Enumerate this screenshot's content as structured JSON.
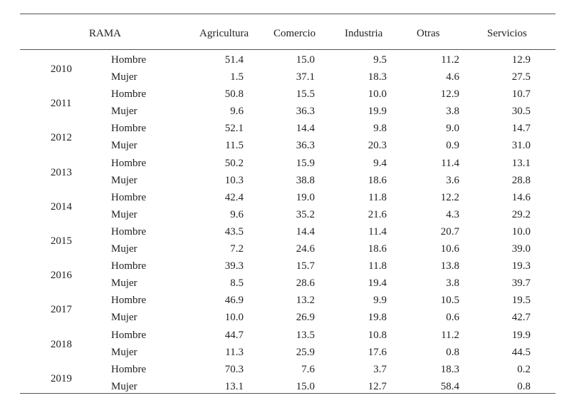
{
  "table": {
    "header": {
      "rama": "RAMA",
      "columns": [
        "Agricultura",
        "Comercio",
        "Industria",
        "Otras",
        "Servicios"
      ]
    },
    "groups": [
      {
        "year": "2010",
        "rows": [
          {
            "sex": "Hombre",
            "values": [
              "51.4",
              "15.0",
              "9.5",
              "11.2",
              "12.9"
            ]
          },
          {
            "sex": "Mujer",
            "values": [
              "1.5",
              "37.1",
              "18.3",
              "4.6",
              "27.5"
            ]
          }
        ]
      },
      {
        "year": "2011",
        "rows": [
          {
            "sex": "Hombre",
            "values": [
              "50.8",
              "15.5",
              "10.0",
              "12.9",
              "10.7"
            ]
          },
          {
            "sex": "Mujer",
            "values": [
              "9.6",
              "36.3",
              "19.9",
              "3.8",
              "30.5"
            ]
          }
        ]
      },
      {
        "year": "2012",
        "rows": [
          {
            "sex": "Hombre",
            "values": [
              "52.1",
              "14.4",
              "9.8",
              "9.0",
              "14.7"
            ]
          },
          {
            "sex": "Mujer",
            "values": [
              "11.5",
              "36.3",
              "20.3",
              "0.9",
              "31.0"
            ]
          }
        ]
      },
      {
        "year": "2013",
        "rows": [
          {
            "sex": "Hombre",
            "values": [
              "50.2",
              "15.9",
              "9.4",
              "11.4",
              "13.1"
            ]
          },
          {
            "sex": "Mujer",
            "values": [
              "10.3",
              "38.8",
              "18.6",
              "3.6",
              "28.8"
            ]
          }
        ]
      },
      {
        "year": "2014",
        "rows": [
          {
            "sex": "Hombre",
            "values": [
              "42.4",
              "19.0",
              "11.8",
              "12.2",
              "14.6"
            ]
          },
          {
            "sex": "Mujer",
            "values": [
              "9.6",
              "35.2",
              "21.6",
              "4.3",
              "29.2"
            ]
          }
        ]
      },
      {
        "year": "2015",
        "rows": [
          {
            "sex": "Hombre",
            "values": [
              "43.5",
              "14.4",
              "11.4",
              "20.7",
              "10.0"
            ]
          },
          {
            "sex": "Mujer",
            "values": [
              "7.2",
              "24.6",
              "18.6",
              "10.6",
              "39.0"
            ]
          }
        ]
      },
      {
        "year": "2016",
        "rows": [
          {
            "sex": "Hombre",
            "values": [
              "39.3",
              "15.7",
              "11.8",
              "13.8",
              "19.3"
            ]
          },
          {
            "sex": "Mujer",
            "values": [
              "8.5",
              "28.6",
              "19.4",
              "3.8",
              "39.7"
            ]
          }
        ]
      },
      {
        "year": "2017",
        "rows": [
          {
            "sex": "Hombre",
            "values": [
              "46.9",
              "13.2",
              "9.9",
              "10.5",
              "19.5"
            ]
          },
          {
            "sex": "Mujer",
            "values": [
              "10.0",
              "26.9",
              "19.8",
              "0.6",
              "42.7"
            ]
          }
        ]
      },
      {
        "year": "2018",
        "rows": [
          {
            "sex": "Hombre",
            "values": [
              "44.7",
              "13.5",
              "10.8",
              "11.2",
              "19.9"
            ]
          },
          {
            "sex": "Mujer",
            "values": [
              "11.3",
              "25.9",
              "17.6",
              "0.8",
              "44.5"
            ]
          }
        ]
      },
      {
        "year": "2019",
        "rows": [
          {
            "sex": "Hombre",
            "values": [
              "70.3",
              "7.6",
              "3.7",
              "18.3",
              "0.2"
            ]
          },
          {
            "sex": "Mujer",
            "values": [
              "13.1",
              "15.0",
              "12.7",
              "58.4",
              "0.8"
            ]
          }
        ]
      }
    ]
  }
}
